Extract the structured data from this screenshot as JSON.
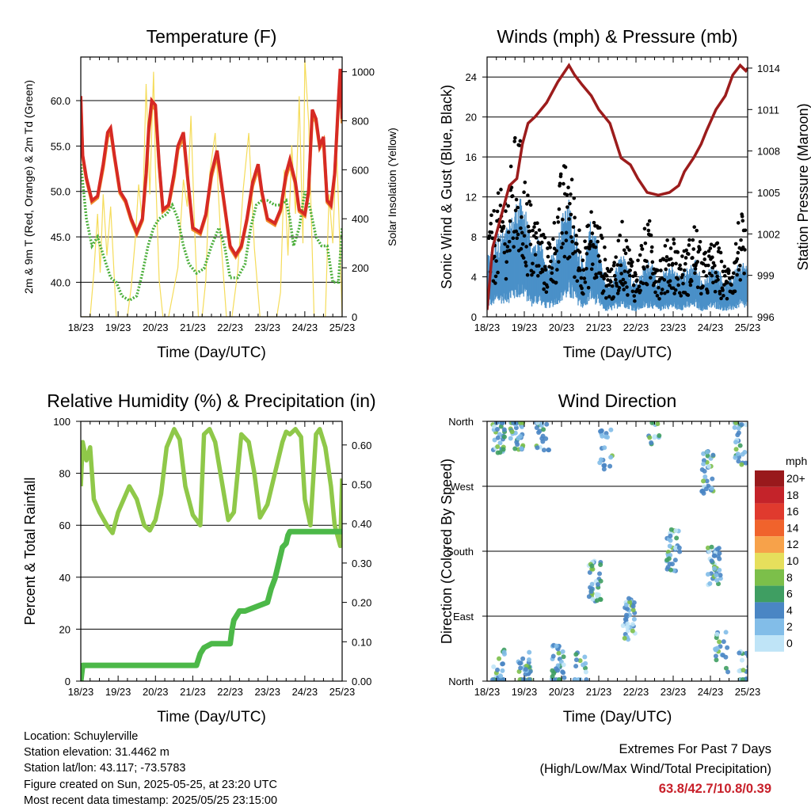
{
  "x_ticks": [
    "18/23",
    "19/23",
    "20/23",
    "21/23",
    "22/23",
    "23/23",
    "24/23",
    "25/23"
  ],
  "chart_data": [
    {
      "type": "line",
      "title": "Temperature (F)",
      "xlabel": "Time (Day/UTC)",
      "ylabel": "2m & 9m T (Red, Orange) & 2m Td (Green)",
      "y2label": "Solar Insolation (Yellow)",
      "x_range": [
        0,
        7
      ],
      "ylim": [
        36.2,
        64.8
      ],
      "y_ticks": [
        "40.0",
        "45.0",
        "50.0",
        "55.0",
        "60.0"
      ],
      "y_tick_values": [
        40,
        45,
        50,
        55,
        60
      ],
      "y2lim": [
        0,
        1060
      ],
      "y2_ticks": [
        "0",
        "200",
        "400",
        "600",
        "800",
        "1000"
      ],
      "y2_tick_values": [
        0,
        200,
        400,
        600,
        800,
        1000
      ],
      "grid": true,
      "series": [
        {
          "color": "#d62a24",
          "axis": "left",
          "x": [
            0,
            0.05,
            0.15,
            0.3,
            0.45,
            0.6,
            0.72,
            0.8,
            0.9,
            1.05,
            1.2,
            1.35,
            1.5,
            1.65,
            1.75,
            1.82,
            1.9,
            2.0,
            2.1,
            2.2,
            2.35,
            2.5,
            2.6,
            2.75,
            2.85,
            3.0,
            3.2,
            3.35,
            3.5,
            3.65,
            3.8,
            4.0,
            4.15,
            4.3,
            4.45,
            4.6,
            4.75,
            4.85,
            5.0,
            5.2,
            5.35,
            5.5,
            5.6,
            5.75,
            5.85,
            6.0,
            6.1,
            6.2,
            6.3,
            6.4,
            6.5,
            6.6,
            6.7,
            6.8,
            6.9,
            6.95,
            7.0
          ],
          "y": [
            60.5,
            54,
            51.5,
            49,
            49.5,
            53,
            56.5,
            57,
            54,
            50,
            49,
            47,
            45.5,
            47,
            52,
            57,
            60,
            59.5,
            53,
            48,
            48.5,
            52,
            55,
            56.5,
            52,
            46,
            45.5,
            47.5,
            52,
            54.5,
            50,
            44,
            43,
            44,
            47,
            51,
            53,
            50,
            47,
            46.5,
            48,
            52,
            53.5,
            51,
            48,
            47.5,
            50,
            59,
            58,
            55,
            56,
            49,
            48.5,
            52,
            60,
            63.5,
            58
          ]
        },
        {
          "color": "#f08c2a",
          "axis": "left",
          "x": [
            0,
            0.05,
            0.15,
            0.3,
            0.45,
            0.6,
            0.72,
            0.8,
            0.9,
            1.05,
            1.2,
            1.35,
            1.5,
            1.65,
            1.75,
            1.82,
            1.9,
            2.0,
            2.1,
            2.2,
            2.35,
            2.5,
            2.6,
            2.75,
            2.85,
            3.0,
            3.2,
            3.35,
            3.5,
            3.65,
            3.8,
            4.0,
            4.15,
            4.3,
            4.45,
            4.6,
            4.75,
            4.85,
            5.0,
            5.2,
            5.35,
            5.5,
            5.6,
            5.75,
            5.85,
            6.0,
            6.1,
            6.2,
            6.3,
            6.4,
            6.5,
            6.6,
            6.7,
            6.8,
            6.9,
            6.95,
            7.0
          ],
          "y": [
            60,
            53.8,
            51.3,
            48.8,
            49.3,
            52.6,
            56,
            56.6,
            53.8,
            49.8,
            48.8,
            46.8,
            45.3,
            46.8,
            51.6,
            56.5,
            59.5,
            59,
            52.8,
            47.8,
            48.3,
            51.6,
            54.6,
            56,
            51.8,
            45.8,
            45.3,
            47.3,
            51.6,
            54.1,
            49.8,
            43.8,
            42.8,
            43.8,
            46.8,
            50.6,
            52.6,
            49.8,
            46.8,
            46.3,
            47.8,
            51.6,
            53,
            50.8,
            47.8,
            47.3,
            49.8,
            58.5,
            57.6,
            54.8,
            55.6,
            48.8,
            48.3,
            51.8,
            59.5,
            63,
            57.5
          ]
        },
        {
          "color": "#4caf3c",
          "axis": "left",
          "x": [
            0,
            0.05,
            0.15,
            0.3,
            0.45,
            0.6,
            0.8,
            0.95,
            1.1,
            1.3,
            1.5,
            1.65,
            1.8,
            1.95,
            2.1,
            2.3,
            2.45,
            2.6,
            2.75,
            2.9,
            3.1,
            3.3,
            3.5,
            3.7,
            3.85,
            4.0,
            4.2,
            4.4,
            4.55,
            4.7,
            4.85,
            5.0,
            5.2,
            5.35,
            5.5,
            5.6,
            5.7,
            5.85,
            6.0,
            6.15,
            6.3,
            6.45,
            6.6,
            6.75,
            6.9,
            7.0
          ],
          "y": [
            53,
            51,
            47,
            44,
            45,
            43,
            40.5,
            40,
            38.5,
            38,
            38.5,
            41,
            44,
            46,
            47,
            47.5,
            48.5,
            47,
            44,
            42,
            41,
            41.5,
            44,
            46,
            44,
            40.5,
            40.5,
            42,
            46,
            48.5,
            49,
            49,
            48.5,
            48.5,
            49,
            47,
            44,
            46,
            50,
            48,
            45,
            44,
            44,
            40,
            40,
            46
          ]
        },
        {
          "color": "#f5dc5a",
          "axis": "right",
          "x": [
            0,
            0.25,
            0.35,
            0.45,
            0.52,
            0.6,
            0.7,
            0.8,
            0.95,
            1.25,
            1.35,
            1.45,
            1.55,
            1.65,
            1.75,
            1.85,
            1.95,
            2.0,
            2.1,
            2.2,
            2.35,
            2.6,
            2.75,
            2.85,
            2.95,
            3.05,
            3.15,
            3.25,
            3.35,
            3.45,
            3.6,
            3.75,
            3.9,
            4.05,
            4.2,
            4.35,
            4.5,
            4.65,
            4.8,
            5.0,
            5.25,
            5.35,
            5.45,
            5.55,
            5.65,
            5.75,
            5.85,
            5.95,
            6.0,
            6.1,
            6.25,
            6.55,
            6.65,
            6.75,
            6.85,
            6.95,
            7.0
          ],
          "y": [
            0,
            0,
            180,
            420,
            180,
            500,
            250,
            450,
            0,
            0,
            120,
            300,
            540,
            380,
            950,
            500,
            1000,
            600,
            150,
            0,
            0,
            200,
            560,
            450,
            820,
            350,
            0,
            0,
            150,
            580,
            750,
            320,
            0,
            0,
            180,
            520,
            750,
            280,
            0,
            0,
            0,
            100,
            600,
            250,
            700,
            420,
            900,
            300,
            1050,
            800,
            0,
            0,
            500,
            300,
            700,
            250,
            0
          ]
        }
      ]
    },
    {
      "type": "scatter",
      "title": "Winds (mph) & Pressure (mb)",
      "xlabel": "Time (Day/UTC)",
      "ylabel": "Sonic Wind & Gust (Blue, Black)",
      "y2label": "Station Pressure (Maroon)",
      "x_range": [
        0,
        7
      ],
      "ylim": [
        0,
        26
      ],
      "y_ticks": [
        "0",
        "4",
        "8",
        "12",
        "16",
        "20",
        "24"
      ],
      "y_tick_values": [
        0,
        4,
        8,
        12,
        16,
        20,
        24
      ],
      "y2lim": [
        996,
        1014.8
      ],
      "y2_ticks": [
        "996",
        "999",
        "1002",
        "1005",
        "1008",
        "1011",
        "1014"
      ],
      "y2_tick_values": [
        996,
        999,
        1002,
        1005,
        1008,
        1011,
        1014
      ],
      "grid": true,
      "wind_mean": {
        "color": "#4a90c8",
        "x": [
          0,
          0.3,
          0.6,
          0.8,
          1.0,
          1.2,
          1.4,
          1.6,
          1.8,
          2.0,
          2.2,
          2.4,
          2.6,
          2.8,
          3.0,
          3.2,
          3.4,
          3.6,
          3.8,
          4.0,
          4.2,
          4.4,
          4.6,
          4.8,
          5.0,
          5.2,
          5.4,
          5.6,
          5.8,
          6.0,
          6.2,
          6.4,
          6.6,
          6.8,
          7.0
        ],
        "y": [
          3.5,
          5,
          5.5,
          7,
          7,
          4,
          5,
          3,
          4,
          6,
          7,
          5,
          3,
          6,
          4,
          2,
          2.5,
          4,
          3,
          2,
          3,
          3.5,
          2,
          3,
          3,
          2.5,
          3,
          3.5,
          2,
          3,
          3,
          2,
          2.5,
          3.5,
          3
        ]
      },
      "gust": {
        "color": "#000000",
        "x": [
          0,
          0.3,
          0.6,
          0.8,
          1.0,
          1.2,
          1.4,
          1.6,
          1.8,
          2.0,
          2.2,
          2.4,
          2.6,
          2.8,
          3.0,
          3.2,
          3.4,
          3.6,
          3.8,
          4.0,
          4.2,
          4.4,
          4.6,
          4.8,
          5.0,
          5.2,
          5.4,
          5.6,
          5.8,
          6.0,
          6.2,
          6.4,
          6.6,
          6.8,
          7.0
        ],
        "y": [
          7,
          10,
          11,
          16,
          12,
          9,
          8,
          6,
          8,
          12,
          13,
          9,
          6,
          9,
          8,
          5,
          4,
          8,
          6,
          4,
          7,
          8,
          5,
          6,
          7,
          5,
          6,
          8,
          5,
          6,
          6,
          4,
          5,
          9,
          6
        ]
      },
      "pressure": {
        "color": "#9c1c1c",
        "x": [
          0,
          0.15,
          0.4,
          0.6,
          0.8,
          0.95,
          1.1,
          1.3,
          1.6,
          1.9,
          2.2,
          2.35,
          2.55,
          2.8,
          3.0,
          3.3,
          3.6,
          3.85,
          4.05,
          4.3,
          4.6,
          4.9,
          5.15,
          5.3,
          5.55,
          5.75,
          5.9,
          6.15,
          6.4,
          6.6,
          6.8,
          6.95,
          7.0
        ],
        "y": [
          996.5,
          1001,
          1003.5,
          1005.5,
          1006,
          1008.5,
          1010,
          1010.5,
          1011.5,
          1013,
          1014.2,
          1013.5,
          1012.8,
          1012,
          1011,
          1010,
          1007.5,
          1007,
          1006,
          1005,
          1004.8,
          1005,
          1005.5,
          1006.5,
          1007.5,
          1008.5,
          1009.5,
          1011,
          1012,
          1013.5,
          1014.2,
          1013.8,
          1014
        ]
      }
    },
    {
      "type": "line",
      "title": "Relative Humidity (%) & Precipitation (in)",
      "xlabel": "Time (Day/UTC)",
      "ylabel": "Percent & Total Rainfall",
      "x_range": [
        0,
        7
      ],
      "ylim": [
        0,
        100
      ],
      "y_ticks": [
        "0",
        "20",
        "40",
        "60",
        "80",
        "100"
      ],
      "y_tick_values": [
        0,
        20,
        40,
        60,
        80,
        100
      ],
      "y2lim": [
        0,
        0.66
      ],
      "y2_ticks": [
        "0.00",
        "0.10",
        "0.20",
        "0.30",
        "0.40",
        "0.50",
        "0.60"
      ],
      "y2_tick_values": [
        0,
        0.1,
        0.2,
        0.3,
        0.4,
        0.5,
        0.6
      ],
      "grid": true,
      "series": [
        {
          "color": "#8fc849",
          "axis": "left",
          "x": [
            0,
            0.05,
            0.15,
            0.25,
            0.35,
            0.5,
            0.7,
            0.85,
            1.0,
            1.15,
            1.3,
            1.5,
            1.7,
            1.85,
            2.0,
            2.15,
            2.3,
            2.5,
            2.65,
            2.8,
            3.0,
            3.2,
            3.3,
            3.45,
            3.6,
            3.8,
            3.95,
            4.1,
            4.3,
            4.5,
            4.65,
            4.8,
            5.0,
            5.2,
            5.4,
            5.5,
            5.6,
            5.75,
            5.9,
            6.0,
            6.15,
            6.3,
            6.4,
            6.55,
            6.7,
            6.8,
            6.95,
            7.0
          ],
          "y": [
            75,
            92,
            85,
            90,
            70,
            65,
            60,
            57,
            65,
            70,
            75,
            70,
            60,
            58,
            62,
            72,
            90,
            97,
            93,
            75,
            64,
            60,
            95,
            97,
            92,
            75,
            62,
            65,
            95,
            92,
            80,
            63,
            68,
            80,
            92,
            96,
            95,
            97,
            94,
            70,
            60,
            95,
            97,
            90,
            75,
            60,
            52,
            78
          ]
        },
        {
          "color": "#4cb848",
          "axis": "right",
          "x": [
            0,
            0.05,
            1.0,
            2.0,
            3.1,
            3.2,
            3.3,
            3.5,
            4.0,
            4.05,
            4.1,
            4.25,
            4.4,
            5.0,
            5.1,
            5.2,
            5.3,
            5.4,
            5.5,
            5.55,
            5.6,
            6.0,
            7.0
          ],
          "y": [
            0,
            0.04,
            0.04,
            0.04,
            0.04,
            0.07,
            0.085,
            0.095,
            0.095,
            0.13,
            0.155,
            0.178,
            0.178,
            0.2,
            0.235,
            0.26,
            0.3,
            0.34,
            0.35,
            0.37,
            0.38,
            0.38,
            0.38
          ]
        }
      ]
    },
    {
      "type": "scatter",
      "title": "Wind Direction",
      "xlabel": "Time (Day/UTC)",
      "ylabel": "Direction (Colored By Speed)",
      "x_range": [
        0,
        7
      ],
      "ylim": [
        0,
        360
      ],
      "y_ticks": [
        "North",
        "East",
        "South",
        "West",
        "North"
      ],
      "y_tick_values": [
        0,
        90,
        180,
        270,
        360
      ],
      "grid": true,
      "legend_title": "mph",
      "legend_labels": [
        "20+",
        "18",
        "16",
        "14",
        "12",
        "10",
        "8",
        "6",
        "4",
        "2",
        "0"
      ],
      "legend_colors": [
        "#99191c",
        "#c4232a",
        "#e03a2e",
        "#f0632c",
        "#f7a24a",
        "#e6df5c",
        "#7cbf4a",
        "#3f9e62",
        "#4a86c4",
        "#82bde8",
        "#bfe4f7"
      ],
      "clusters": [
        {
          "x": 0.3,
          "y": 345,
          "count": 30
        },
        {
          "x": 0.3,
          "y": 15,
          "count": 25
        },
        {
          "x": 0.8,
          "y": 350,
          "count": 40
        },
        {
          "x": 1.0,
          "y": 10,
          "count": 30
        },
        {
          "x": 1.5,
          "y": 350,
          "count": 20
        },
        {
          "x": 1.9,
          "y": 20,
          "count": 35
        },
        {
          "x": 2.9,
          "y": 140,
          "count": 35
        },
        {
          "x": 2.5,
          "y": 10,
          "count": 15
        },
        {
          "x": 3.2,
          "y": 320,
          "count": 20
        },
        {
          "x": 3.8,
          "y": 85,
          "count": 35
        },
        {
          "x": 4.5,
          "y": 350,
          "count": 15
        },
        {
          "x": 5.0,
          "y": 180,
          "count": 35
        },
        {
          "x": 5.9,
          "y": 290,
          "count": 30
        },
        {
          "x": 6.1,
          "y": 160,
          "count": 35
        },
        {
          "x": 6.3,
          "y": 40,
          "count": 20
        },
        {
          "x": 6.8,
          "y": 330,
          "count": 25
        },
        {
          "x": 6.9,
          "y": 20,
          "count": 20
        }
      ]
    }
  ],
  "info": {
    "location": "Location: Schuylerville",
    "elevation": "Station elevation: 31.4462 m",
    "latlon": "Station lat/lon: 43.117; -73.5783",
    "created": "Figure created on Sun, 2025-05-25, at 23:20 UTC",
    "recent": "Most recent data timestamp: 2025/05/25 23:15:00"
  },
  "extremes": {
    "heading": "Extremes For Past 7 Days",
    "subheading": "(High/Low/Max Wind/Total Precipitation)",
    "values": "63.8/42.7/10.8/0.39"
  }
}
